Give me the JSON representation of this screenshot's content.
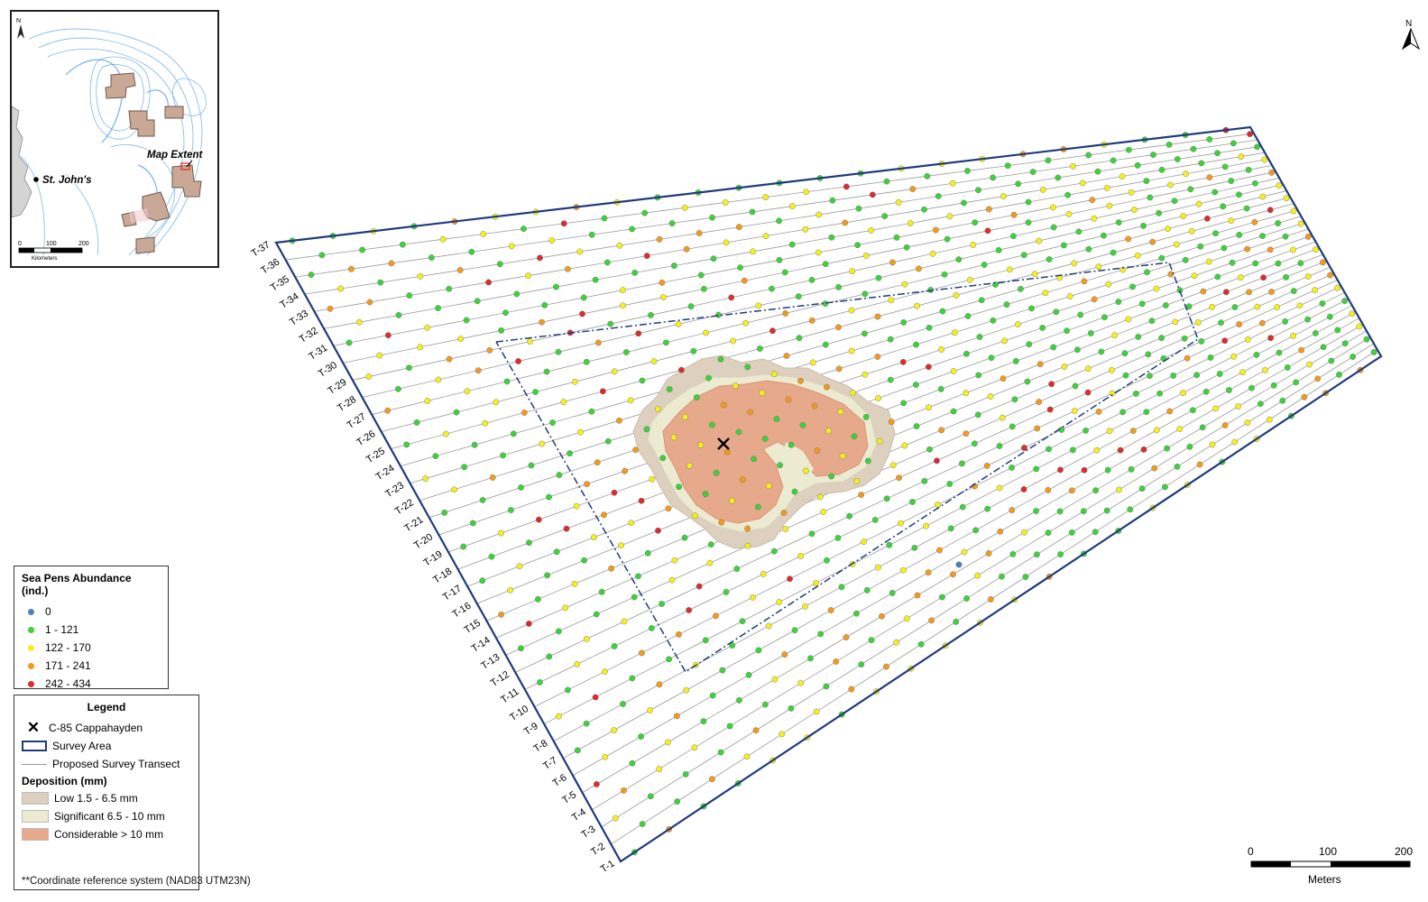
{
  "inset": {
    "city": "St. John's",
    "extent_label": "Map Extent",
    "scale_ticks": [
      "0",
      "100",
      "200"
    ],
    "scale_unit": "Kilometers",
    "north": "N"
  },
  "abundance_legend": {
    "title": "Sea Pens Abundance (ind.)",
    "classes": [
      {
        "label": "0",
        "color": "#4f7fbf"
      },
      {
        "label": "1 - 121",
        "color": "#3dd13b"
      },
      {
        "label": "122 - 170",
        "color": "#f5ef1c"
      },
      {
        "label": "171 - 241",
        "color": "#f29a1e"
      },
      {
        "label": "242 - 434",
        "color": "#d92e2e"
      }
    ]
  },
  "legend": {
    "title": "Legend",
    "well": "C-85 Cappahayden",
    "survey_area": "Survey Area",
    "transect": "Proposed Survey Transect",
    "deposition_title": "Deposition (mm)",
    "deposition": [
      {
        "label": "Low 1.5 - 6.5 mm",
        "color": "#ddd0bf"
      },
      {
        "label": "Significant 6.5 - 10 mm",
        "color": "#ecebd2"
      },
      {
        "label": "Considerable > 10 mm",
        "color": "#e6a98c"
      }
    ]
  },
  "transects": [
    "T-1",
    "T-2",
    "T-3",
    "T-4",
    "T-5",
    "T-6",
    "T-7",
    "T-8",
    "T-9",
    "T-10",
    "T-11",
    "T-12",
    "T-13",
    "T-14",
    "T15",
    "T-16",
    "T-17",
    "T-18",
    "T-19",
    "T-20",
    "T-21",
    "T-22",
    "T-23",
    "T-24",
    "T-25",
    "T-26",
    "T-27",
    "T-28",
    "T-29",
    "T-30",
    "T-31",
    "T-32",
    "T-33",
    "T-34",
    "T-35",
    "T-36",
    "T-37"
  ],
  "scalebar": {
    "ticks": [
      "0",
      "100",
      "200"
    ],
    "unit": "Meters"
  },
  "north": "N",
  "crs": "**Coordinate reference system (NAD83 UTM23N)",
  "colors": {
    "survey_outline": "#1f3b7a",
    "transect": "#9a9a9a",
    "water_contour": "#5aa0e6"
  }
}
